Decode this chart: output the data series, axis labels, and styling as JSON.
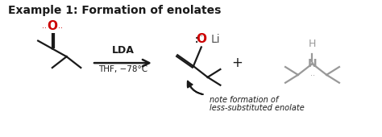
{
  "title": "Example 1: Formation of enolates",
  "title_fontsize": 10,
  "background_color": "#ffffff",
  "arrow_label_line1": "LDA",
  "arrow_label_line2": "THF, −78°C",
  "plus_sign": "+",
  "note_line1": "note formation of",
  "note_line2": "less-substituted enolate",
  "O_color": "#cc0000",
  "gray_color": "#999999",
  "black_color": "#1a1a1a"
}
